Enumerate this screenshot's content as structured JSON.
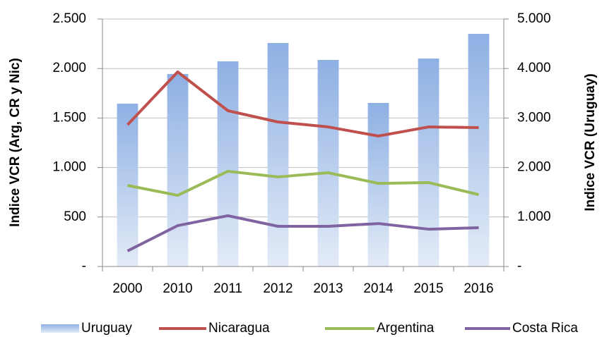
{
  "chart_data": {
    "type": "combo",
    "categories": [
      "2000",
      "2010",
      "2011",
      "2012",
      "2013",
      "2014",
      "2015",
      "2016"
    ],
    "y_label": "Indice VCR (Arg, CR y Nic)",
    "y2_label": "Indice VCR (Uruguay)",
    "ylim": [
      0,
      2500
    ],
    "yticks": [
      {
        "value": 0,
        "label": "-"
      },
      500,
      {
        "value": 1000,
        "label": "1.000"
      },
      {
        "value": 1500,
        "label": "1.500"
      },
      {
        "value": 2000,
        "label": "2.000"
      },
      {
        "value": 2500,
        "label": "2.500"
      }
    ],
    "y2lim": [
      0,
      5000
    ],
    "y2ticks": [
      {
        "value": 0,
        "label": "-"
      },
      {
        "value": 1000,
        "label": "1.000"
      },
      {
        "value": 2000,
        "label": "2.000"
      },
      {
        "value": 3000,
        "label": "3.000"
      },
      {
        "value": 4000,
        "label": "4.000"
      },
      {
        "value": 5000,
        "label": "5.000"
      }
    ],
    "grid": true,
    "legend": "bottom",
    "series": [
      {
        "name": "Uruguay",
        "type": "bar",
        "axis": "y2",
        "color": "#8eb0e3",
        "values": [
          3290,
          3890,
          4145,
          4516,
          4174,
          3305,
          4202,
          4701
        ]
      },
      {
        "name": "Nicaragua",
        "type": "line",
        "color": "#c0504d",
        "values": [
          1432,
          1966,
          1574,
          1460,
          1410,
          1318,
          1410,
          1403
        ]
      },
      {
        "name": "Argentina",
        "type": "line",
        "color": "#9bbb59",
        "values": [
          819,
          719,
          962,
          905,
          947,
          840,
          848,
          726
        ]
      },
      {
        "name": "Costa Rica",
        "type": "line",
        "color": "#8064a2",
        "values": [
          157,
          413,
          513,
          406,
          406,
          434,
          377,
          392
        ]
      }
    ]
  }
}
